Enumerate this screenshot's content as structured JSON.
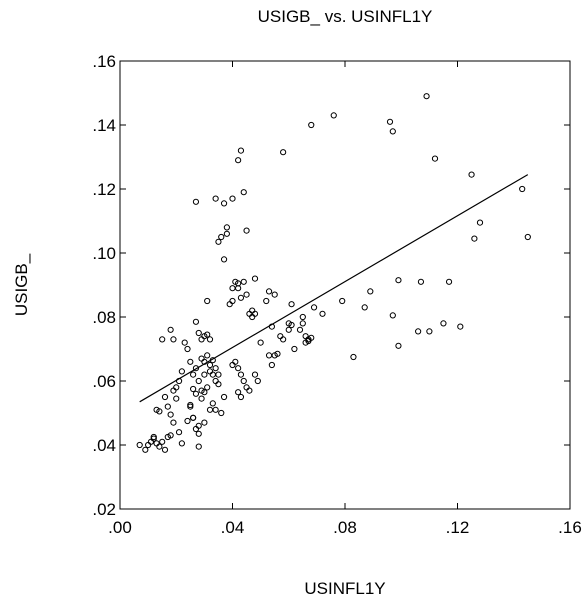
{
  "chart_data": {
    "type": "scatter",
    "title": "USIGB_ vs. USINFL1Y",
    "xlabel": "USINFL1Y",
    "ylabel": "USIGB_",
    "xlim": [
      0.0,
      0.16
    ],
    "ylim": [
      0.02,
      0.16
    ],
    "xticks": [
      ".00",
      ".04",
      ".08",
      ".12",
      ".16"
    ],
    "yticks": [
      ".02",
      ".04",
      ".06",
      ".08",
      ".10",
      ".12",
      ".14",
      ".16"
    ],
    "grid": false,
    "marker": "open-circle",
    "fit_line": {
      "x": [
        0.007,
        0.145
      ],
      "y": [
        0.0535,
        0.1245
      ]
    },
    "points": [
      [
        0.007,
        0.04
      ],
      [
        0.009,
        0.0385
      ],
      [
        0.01,
        0.04
      ],
      [
        0.011,
        0.041
      ],
      [
        0.012,
        0.042
      ],
      [
        0.013,
        0.0405
      ],
      [
        0.014,
        0.0395
      ],
      [
        0.015,
        0.041
      ],
      [
        0.016,
        0.0385
      ],
      [
        0.017,
        0.0425
      ],
      [
        0.018,
        0.043
      ],
      [
        0.012,
        0.0425
      ],
      [
        0.013,
        0.051
      ],
      [
        0.014,
        0.0505
      ],
      [
        0.016,
        0.055
      ],
      [
        0.017,
        0.052
      ],
      [
        0.019,
        0.057
      ],
      [
        0.02,
        0.0545
      ],
      [
        0.018,
        0.0495
      ],
      [
        0.019,
        0.047
      ],
      [
        0.021,
        0.044
      ],
      [
        0.022,
        0.0405
      ],
      [
        0.015,
        0.073
      ],
      [
        0.018,
        0.076
      ],
      [
        0.019,
        0.073
      ],
      [
        0.02,
        0.058
      ],
      [
        0.021,
        0.06
      ],
      [
        0.022,
        0.063
      ],
      [
        0.023,
        0.072
      ],
      [
        0.024,
        0.07
      ],
      [
        0.025,
        0.066
      ],
      [
        0.026,
        0.0575
      ],
      [
        0.027,
        0.056
      ],
      [
        0.025,
        0.052
      ],
      [
        0.026,
        0.0485
      ],
      [
        0.027,
        0.045
      ],
      [
        0.028,
        0.0435
      ],
      [
        0.028,
        0.0395
      ],
      [
        0.024,
        0.0475
      ],
      [
        0.026,
        0.062
      ],
      [
        0.027,
        0.064
      ],
      [
        0.028,
        0.06
      ],
      [
        0.029,
        0.057
      ],
      [
        0.03,
        0.062
      ],
      [
        0.031,
        0.058
      ],
      [
        0.032,
        0.063
      ],
      [
        0.033,
        0.062
      ],
      [
        0.034,
        0.06
      ],
      [
        0.035,
        0.059
      ],
      [
        0.036,
        0.05
      ],
      [
        0.037,
        0.055
      ],
      [
        0.029,
        0.067
      ],
      [
        0.03,
        0.066
      ],
      [
        0.031,
        0.068
      ],
      [
        0.032,
        0.065
      ],
      [
        0.033,
        0.0665
      ],
      [
        0.034,
        0.064
      ],
      [
        0.035,
        0.062
      ],
      [
        0.028,
        0.075
      ],
      [
        0.029,
        0.073
      ],
      [
        0.03,
        0.074
      ],
      [
        0.031,
        0.0745
      ],
      [
        0.032,
        0.073
      ],
      [
        0.027,
        0.0785
      ],
      [
        0.031,
        0.085
      ],
      [
        0.025,
        0.0525
      ],
      [
        0.026,
        0.0485
      ],
      [
        0.028,
        0.046
      ],
      [
        0.03,
        0.047
      ],
      [
        0.032,
        0.051
      ],
      [
        0.033,
        0.053
      ],
      [
        0.034,
        0.051
      ],
      [
        0.029,
        0.0545
      ],
      [
        0.03,
        0.0565
      ],
      [
        0.027,
        0.116
      ],
      [
        0.034,
        0.117
      ],
      [
        0.037,
        0.1155
      ],
      [
        0.04,
        0.117
      ],
      [
        0.044,
        0.119
      ],
      [
        0.035,
        0.1035
      ],
      [
        0.036,
        0.105
      ],
      [
        0.038,
        0.106
      ],
      [
        0.038,
        0.108
      ],
      [
        0.045,
        0.107
      ],
      [
        0.037,
        0.098
      ],
      [
        0.042,
        0.129
      ],
      [
        0.043,
        0.132
      ],
      [
        0.058,
        0.1315
      ],
      [
        0.039,
        0.084
      ],
      [
        0.04,
        0.085
      ],
      [
        0.04,
        0.089
      ],
      [
        0.042,
        0.089
      ],
      [
        0.041,
        0.091
      ],
      [
        0.042,
        0.0905
      ],
      [
        0.044,
        0.091
      ],
      [
        0.043,
        0.086
      ],
      [
        0.045,
        0.087
      ],
      [
        0.048,
        0.092
      ],
      [
        0.047,
        0.082
      ],
      [
        0.046,
        0.081
      ],
      [
        0.047,
        0.08
      ],
      [
        0.048,
        0.081
      ],
      [
        0.04,
        0.065
      ],
      [
        0.041,
        0.066
      ],
      [
        0.042,
        0.064
      ],
      [
        0.043,
        0.062
      ],
      [
        0.044,
        0.06
      ],
      [
        0.045,
        0.058
      ],
      [
        0.042,
        0.0565
      ],
      [
        0.043,
        0.055
      ],
      [
        0.048,
        0.062
      ],
      [
        0.049,
        0.06
      ],
      [
        0.046,
        0.057
      ],
      [
        0.05,
        0.072
      ],
      [
        0.052,
        0.085
      ],
      [
        0.053,
        0.088
      ],
      [
        0.055,
        0.087
      ],
      [
        0.054,
        0.077
      ],
      [
        0.053,
        0.068
      ],
      [
        0.054,
        0.065
      ],
      [
        0.055,
        0.068
      ],
      [
        0.056,
        0.0685
      ],
      [
        0.057,
        0.074
      ],
      [
        0.058,
        0.073
      ],
      [
        0.06,
        0.078
      ],
      [
        0.061,
        0.0775
      ],
      [
        0.06,
        0.076
      ],
      [
        0.061,
        0.084
      ],
      [
        0.062,
        0.07
      ],
      [
        0.064,
        0.076
      ],
      [
        0.065,
        0.08
      ],
      [
        0.066,
        0.074
      ],
      [
        0.067,
        0.073
      ],
      [
        0.066,
        0.072
      ],
      [
        0.067,
        0.0725
      ],
      [
        0.068,
        0.0735
      ],
      [
        0.065,
        0.078
      ],
      [
        0.069,
        0.083
      ],
      [
        0.072,
        0.081
      ],
      [
        0.079,
        0.085
      ],
      [
        0.068,
        0.14
      ],
      [
        0.076,
        0.143
      ],
      [
        0.083,
        0.0675
      ],
      [
        0.087,
        0.083
      ],
      [
        0.089,
        0.088
      ],
      [
        0.096,
        0.141
      ],
      [
        0.097,
        0.138
      ],
      [
        0.097,
        0.0805
      ],
      [
        0.099,
        0.0915
      ],
      [
        0.099,
        0.071
      ],
      [
        0.106,
        0.0755
      ],
      [
        0.107,
        0.091
      ],
      [
        0.109,
        0.149
      ],
      [
        0.11,
        0.0755
      ],
      [
        0.112,
        0.1295
      ],
      [
        0.115,
        0.078
      ],
      [
        0.117,
        0.091
      ],
      [
        0.121,
        0.077
      ],
      [
        0.125,
        0.1245
      ],
      [
        0.126,
        0.1045
      ],
      [
        0.128,
        0.1095
      ],
      [
        0.143,
        0.12
      ],
      [
        0.145,
        0.105
      ]
    ]
  }
}
